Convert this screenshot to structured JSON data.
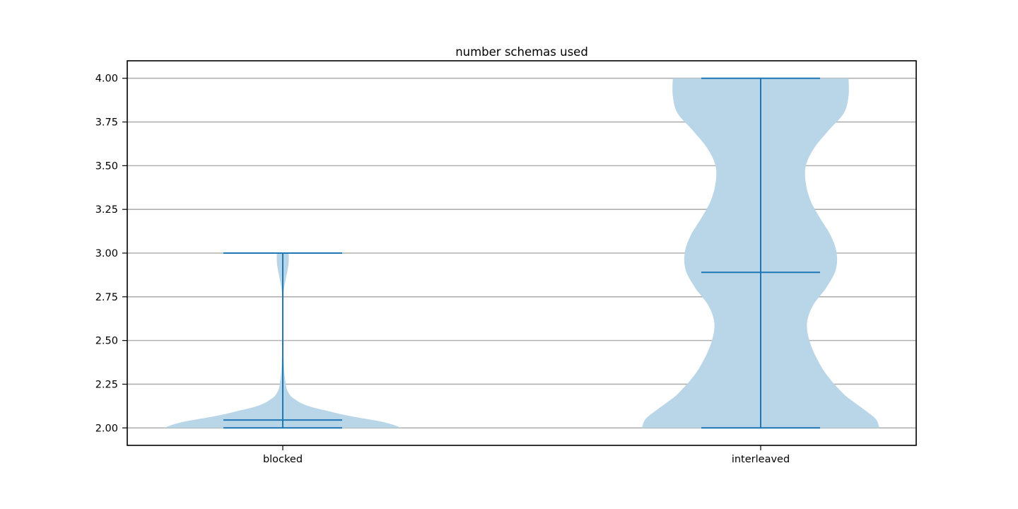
{
  "chart_data": {
    "type": "violin",
    "title": "number schemas used",
    "xlabel": "",
    "ylabel": "",
    "categories": [
      "blocked",
      "interleaved"
    ],
    "ylim": [
      1.9,
      4.1
    ],
    "yticks": [
      2.0,
      2.25,
      2.5,
      2.75,
      3.0,
      3.25,
      3.5,
      3.75,
      4.0
    ],
    "ytick_labels": [
      "2.00",
      "2.25",
      "2.50",
      "2.75",
      "3.00",
      "3.25",
      "3.50",
      "3.75",
      "4.00"
    ],
    "grid": "horizontal",
    "colors": {
      "body": "#b9d5e8",
      "lines": "#1f77b4",
      "grid": "#b0b0b0",
      "axes": "#000000"
    },
    "violins": [
      {
        "category": "blocked",
        "min": 2.0,
        "max": 3.0,
        "mean": 2.045,
        "density_profile": [
          [
            2.0,
            1.0
          ],
          [
            2.02,
            0.92
          ],
          [
            2.04,
            0.8
          ],
          [
            2.06,
            0.63
          ],
          [
            2.08,
            0.48
          ],
          [
            2.1,
            0.36
          ],
          [
            2.12,
            0.24
          ],
          [
            2.14,
            0.16
          ],
          [
            2.16,
            0.11
          ],
          [
            2.18,
            0.07
          ],
          [
            2.2,
            0.05
          ],
          [
            2.22,
            0.035
          ],
          [
            2.25,
            0.025
          ],
          [
            2.35,
            0.01
          ],
          [
            2.5,
            0.004
          ],
          [
            2.75,
            0.005
          ],
          [
            2.85,
            0.025
          ],
          [
            2.9,
            0.04
          ],
          [
            2.95,
            0.05
          ],
          [
            3.0,
            0.05
          ]
        ]
      },
      {
        "category": "interleaved",
        "min": 2.0,
        "max": 4.0,
        "mean": 2.89,
        "density_profile": [
          [
            2.0,
            1.0
          ],
          [
            2.05,
            0.97
          ],
          [
            2.1,
            0.88
          ],
          [
            2.15,
            0.78
          ],
          [
            2.2,
            0.69
          ],
          [
            2.3,
            0.56
          ],
          [
            2.4,
            0.47
          ],
          [
            2.5,
            0.41
          ],
          [
            2.6,
            0.39
          ],
          [
            2.7,
            0.44
          ],
          [
            2.8,
            0.55
          ],
          [
            2.9,
            0.63
          ],
          [
            3.0,
            0.64
          ],
          [
            3.1,
            0.59
          ],
          [
            3.2,
            0.5
          ],
          [
            3.3,
            0.42
          ],
          [
            3.4,
            0.38
          ],
          [
            3.5,
            0.38
          ],
          [
            3.6,
            0.45
          ],
          [
            3.7,
            0.57
          ],
          [
            3.8,
            0.7
          ],
          [
            3.9,
            0.74
          ],
          [
            4.0,
            0.74
          ]
        ]
      }
    ]
  }
}
